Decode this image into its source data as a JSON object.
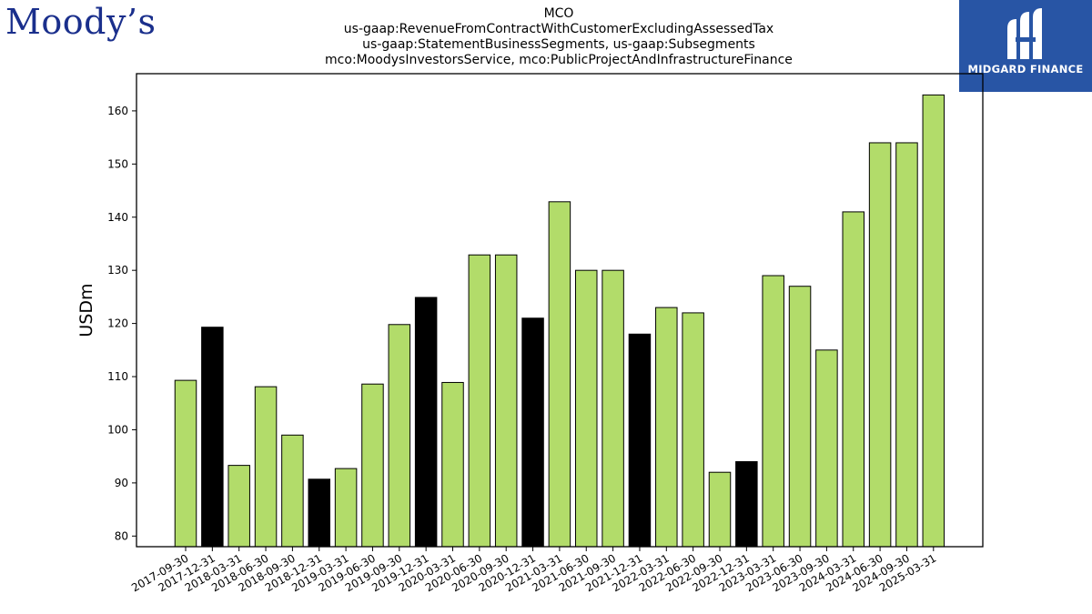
{
  "logos": {
    "left_text": "Moody’s",
    "right_text": "MIDGARD FINANCE"
  },
  "title_lines": [
    "MCO",
    "us-gaap:RevenueFromContractWithCustomerExcludingAssessedTax",
    "us-gaap:StatementBusinessSegments, us-gaap:Subsegments",
    "mco:MoodysInvestorsService, mco:PublicProjectAndInfrastructureFinance"
  ],
  "colors": {
    "q_bar": "#b2dc6a",
    "annual_bar": "#000000",
    "brand_left": "#1a2f8c",
    "brand_right": "#2855a5"
  },
  "chart_data": {
    "type": "bar",
    "ylabel": "USDm",
    "xlabel": "",
    "ylim": [
      78,
      167
    ],
    "yticks": [
      80,
      90,
      100,
      110,
      120,
      130,
      140,
      150,
      160
    ],
    "grid": false,
    "legend": "none",
    "categories": [
      "2017-09-30",
      "2017-12-31",
      "2018-03-31",
      "2018-06-30",
      "2018-09-30",
      "2018-12-31",
      "2019-03-31",
      "2019-06-30",
      "2019-09-30",
      "2019-12-31",
      "2020-03-31",
      "2020-06-30",
      "2020-09-30",
      "2020-12-31",
      "2021-03-31",
      "2021-06-30",
      "2021-09-30",
      "2021-12-31",
      "2022-03-31",
      "2022-06-30",
      "2022-09-30",
      "2022-12-31",
      "2023-03-31",
      "2023-06-30",
      "2023-09-30",
      "2024-03-31",
      "2024-06-30",
      "2024-09-30",
      "2025-03-31"
    ],
    "values": [
      109.3,
      119.3,
      93.3,
      108.1,
      99.0,
      90.7,
      92.7,
      108.6,
      119.8,
      124.9,
      108.9,
      132.9,
      132.9,
      121.0,
      142.9,
      130.0,
      130.0,
      118.0,
      123.0,
      122.0,
      92.0,
      94.0,
      129.0,
      127.0,
      115.0,
      141.0,
      154.0,
      154.0,
      163.0
    ],
    "highlight": [
      "quarter",
      "annual",
      "quarter",
      "quarter",
      "quarter",
      "annual",
      "quarter",
      "quarter",
      "quarter",
      "annual",
      "quarter",
      "quarter",
      "quarter",
      "annual",
      "quarter",
      "quarter",
      "quarter",
      "annual",
      "quarter",
      "quarter",
      "quarter",
      "annual",
      "quarter",
      "quarter",
      "quarter",
      "quarter",
      "quarter",
      "quarter",
      "quarter"
    ]
  }
}
